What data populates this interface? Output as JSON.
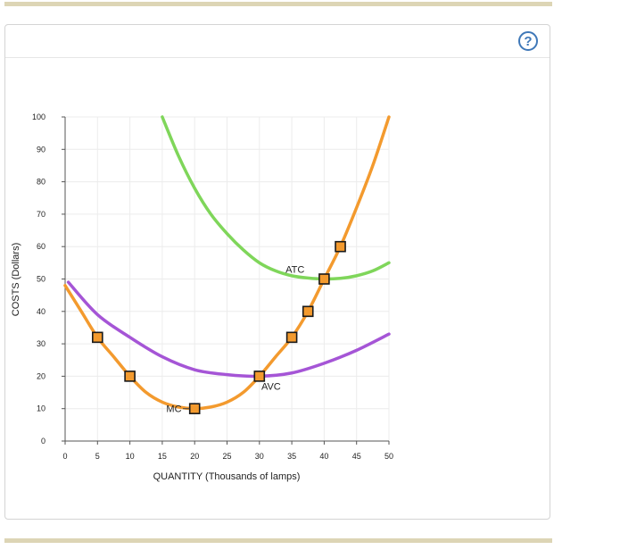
{
  "help": {
    "label": "?"
  },
  "chart_data": {
    "type": "line",
    "xlabel": "QUANTITY (Thousands of lamps)",
    "ylabel": "COSTS (Dollars)",
    "xlim": [
      0,
      50
    ],
    "ylim": [
      0,
      100
    ],
    "xticks": [
      0,
      5,
      10,
      15,
      20,
      25,
      30,
      35,
      40,
      45,
      50
    ],
    "yticks": [
      0,
      10,
      20,
      30,
      40,
      50,
      60,
      70,
      80,
      90,
      100
    ],
    "grid": true,
    "series": [
      {
        "name": "MC",
        "color": "#f39a2e",
        "x": [
          0,
          2.5,
          5,
          7.5,
          10,
          12.5,
          15,
          17.5,
          20,
          22.5,
          25,
          27.5,
          30,
          32.5,
          35,
          37.5,
          40,
          42.5,
          45,
          47.5,
          50
        ],
        "y": [
          48,
          40,
          32,
          26,
          20,
          15,
          12,
          10.5,
          10,
          10.5,
          12,
          15,
          20,
          26,
          32,
          40,
          50,
          60,
          72,
          85,
          100
        ]
      },
      {
        "name": "AVC",
        "color": "#a555d6",
        "x": [
          0.5,
          5,
          10,
          15,
          20,
          25,
          30,
          35,
          40,
          45,
          50
        ],
        "y": [
          49,
          39,
          32,
          26,
          22,
          20.5,
          20,
          21,
          24,
          28,
          33
        ]
      },
      {
        "name": "ATC",
        "color": "#7fd65a",
        "x": [
          15,
          17.5,
          20,
          22.5,
          25,
          27.5,
          30,
          32.5,
          35,
          37.5,
          40,
          42.5,
          45,
          47.5,
          50
        ],
        "y": [
          100,
          88,
          78,
          70,
          64,
          59,
          55,
          52.5,
          51,
          50.3,
          50,
          50.2,
          51,
          52.5,
          55
        ]
      }
    ],
    "markers": {
      "color": "#f39a2e",
      "points": [
        {
          "x": 5,
          "y": 32
        },
        {
          "x": 10,
          "y": 20
        },
        {
          "x": 20,
          "y": 10
        },
        {
          "x": 30,
          "y": 20
        },
        {
          "x": 35,
          "y": 32
        },
        {
          "x": 37.5,
          "y": 40
        },
        {
          "x": 40,
          "y": 50
        },
        {
          "x": 42.5,
          "y": 60
        }
      ]
    },
    "annotations": [
      {
        "text": "MC",
        "x": 16.8,
        "y": 10,
        "line_to": {
          "x": 19.2,
          "y": 10
        }
      },
      {
        "text": "AVC",
        "x": 31.8,
        "y": 17
      },
      {
        "text": "ATC",
        "x": 35.5,
        "y": 53
      }
    ]
  }
}
